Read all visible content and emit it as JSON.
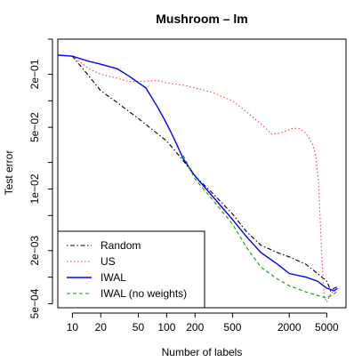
{
  "chart_data": {
    "type": "line",
    "title": "Mushroom – lm",
    "xlabel": "Number of labels",
    "ylabel": "Test error",
    "x_scale": "log",
    "y_scale": "log",
    "xlim": [
      7,
      8000
    ],
    "ylim": [
      0.00045,
      0.5
    ],
    "x_ticks": [
      10,
      20,
      50,
      100,
      200,
      500,
      2000,
      5000
    ],
    "x_tick_labels": [
      "10",
      "20",
      "50",
      "100",
      "200",
      "500",
      "2000",
      "5000"
    ],
    "y_ticks": [
      0.0005,
      0.002,
      0.01,
      0.05,
      0.2
    ],
    "y_tick_labels": [
      "5e−04",
      "2e−03",
      "1e−02",
      "5e−02",
      "2e−01"
    ],
    "legend_position": "bottom-left",
    "series": [
      {
        "name": "Random",
        "color": "#000000",
        "dash": "dotdash",
        "points": [
          [
            7,
            0.33
          ],
          [
            10,
            0.32
          ],
          [
            15,
            0.19
          ],
          [
            20,
            0.13
          ],
          [
            30,
            0.095
          ],
          [
            50,
            0.063
          ],
          [
            100,
            0.035
          ],
          [
            150,
            0.021
          ],
          [
            200,
            0.014
          ],
          [
            300,
            0.0092
          ],
          [
            500,
            0.0052
          ],
          [
            700,
            0.0033
          ],
          [
            1000,
            0.0023
          ],
          [
            1500,
            0.0019
          ],
          [
            2000,
            0.0017
          ],
          [
            3000,
            0.0014
          ],
          [
            4000,
            0.0011
          ],
          [
            5000,
            0.0009
          ],
          [
            5500,
            0.0007
          ],
          [
            6000,
            0.00075
          ],
          [
            6500,
            0.00078
          ]
        ]
      },
      {
        "name": "US",
        "color": "#ff3b3b",
        "dash": "dotted",
        "points": [
          [
            7,
            0.33
          ],
          [
            10,
            0.32
          ],
          [
            15,
            0.23
          ],
          [
            20,
            0.2
          ],
          [
            30,
            0.18
          ],
          [
            40,
            0.165
          ],
          [
            50,
            0.165
          ],
          [
            60,
            0.167
          ],
          [
            80,
            0.17
          ],
          [
            100,
            0.16
          ],
          [
            150,
            0.15
          ],
          [
            200,
            0.14
          ],
          [
            300,
            0.125
          ],
          [
            500,
            0.1
          ],
          [
            700,
            0.075
          ],
          [
            1000,
            0.055
          ],
          [
            1300,
            0.042
          ],
          [
            1600,
            0.043
          ],
          [
            1900,
            0.046
          ],
          [
            2200,
            0.049
          ],
          [
            2600,
            0.048
          ],
          [
            3000,
            0.043
          ],
          [
            3500,
            0.033
          ],
          [
            3800,
            0.025
          ],
          [
            4100,
            0.012
          ],
          [
            4400,
            0.002
          ],
          [
            4700,
            0.0006
          ],
          [
            5000,
            0.00052
          ],
          [
            5500,
            0.00065
          ],
          [
            6000,
            0.0007
          ],
          [
            6500,
            0.00075
          ]
        ]
      },
      {
        "name": "IWAL",
        "color": "#0000ff",
        "dash": "solid",
        "points": [
          [
            7,
            0.33
          ],
          [
            10,
            0.32
          ],
          [
            15,
            0.28
          ],
          [
            20,
            0.26
          ],
          [
            30,
            0.23
          ],
          [
            40,
            0.19
          ],
          [
            60,
            0.14
          ],
          [
            80,
            0.085
          ],
          [
            100,
            0.055
          ],
          [
            120,
            0.037
          ],
          [
            150,
            0.022
          ],
          [
            200,
            0.014
          ],
          [
            300,
            0.0085
          ],
          [
            500,
            0.0045
          ],
          [
            700,
            0.0029
          ],
          [
            1000,
            0.0019
          ],
          [
            1500,
            0.0014
          ],
          [
            2000,
            0.0011
          ],
          [
            3000,
            0.001
          ],
          [
            4000,
            0.0009
          ],
          [
            5000,
            0.00075
          ],
          [
            6000,
            0.0007
          ],
          [
            6500,
            0.00075
          ]
        ]
      },
      {
        "name": "IWAL (no weights)",
        "color": "#00a000",
        "dash": "dashed",
        "points": [
          [
            150,
            0.024
          ],
          [
            200,
            0.013
          ],
          [
            300,
            0.0078
          ],
          [
            500,
            0.004
          ],
          [
            700,
            0.0022
          ],
          [
            1000,
            0.0013
          ],
          [
            1500,
            0.00095
          ],
          [
            2000,
            0.0008
          ],
          [
            3000,
            0.00068
          ],
          [
            4000,
            0.00062
          ],
          [
            5000,
            0.00058
          ],
          [
            6000,
            0.00065
          ],
          [
            6500,
            0.0007
          ]
        ]
      }
    ]
  }
}
